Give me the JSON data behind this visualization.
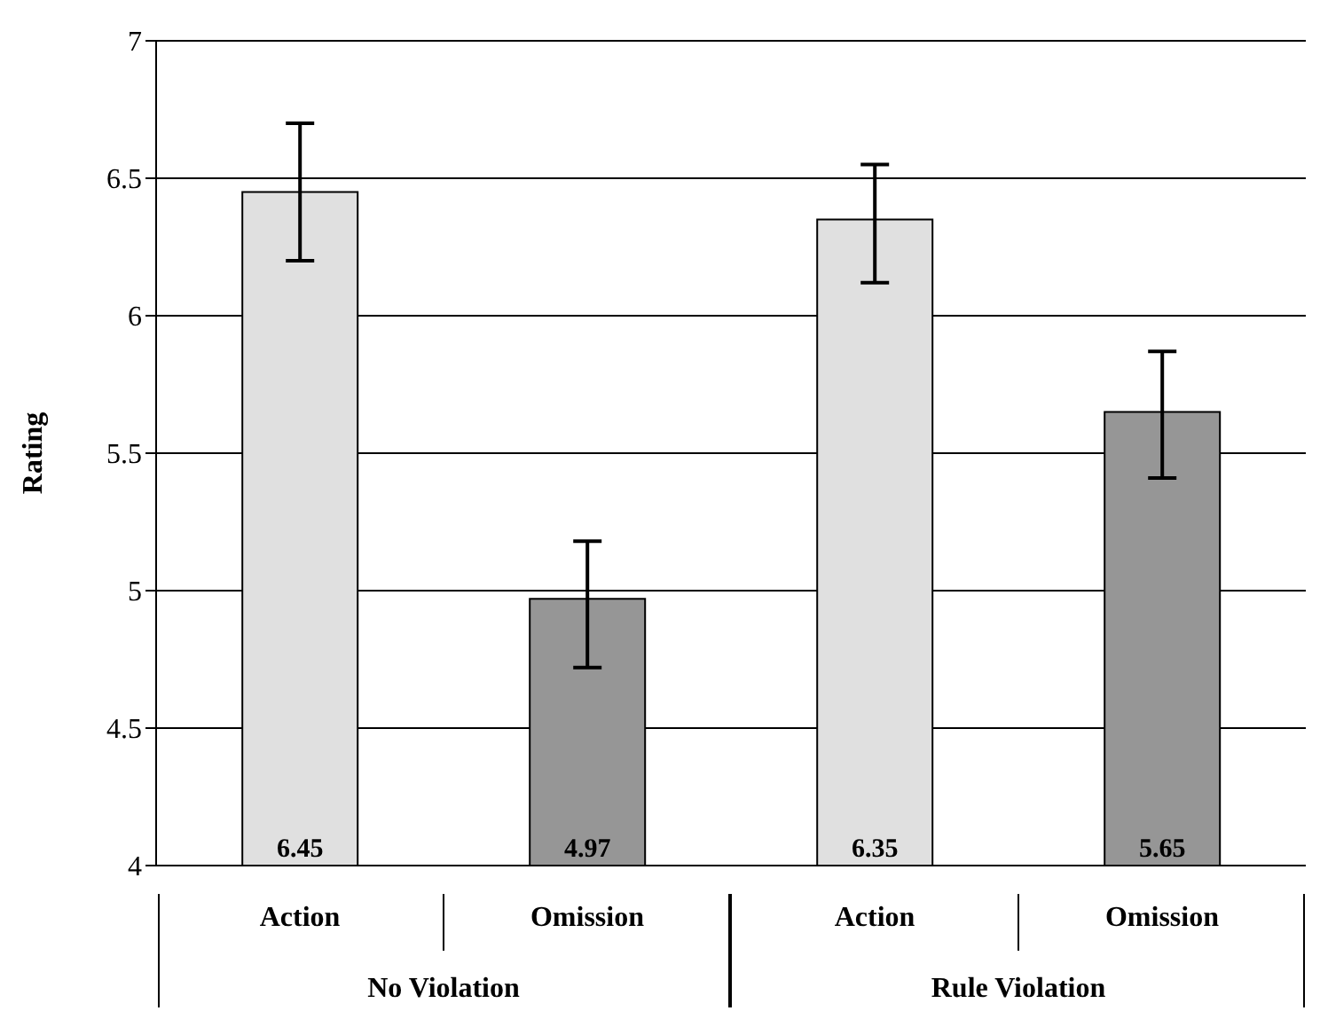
{
  "chart_data": {
    "type": "bar",
    "ylabel": "Rating",
    "categories": [
      "Action",
      "Omission",
      "Action",
      "Omission"
    ],
    "values": [
      6.45,
      4.97,
      6.35,
      5.65
    ],
    "colors": [
      "#e0e0e0",
      "#969696",
      "#e0e0e0",
      "#969696"
    ],
    "errors": [
      [
        6.2,
        6.7
      ],
      [
        4.72,
        5.18
      ],
      [
        6.12,
        6.55
      ],
      [
        5.41,
        5.87
      ]
    ],
    "ylim": [
      4,
      7
    ],
    "yticks": [
      4,
      4.5,
      5,
      5.5,
      6,
      6.5,
      7
    ],
    "grid": "y",
    "data_labels": true,
    "annotations": [
      "No Violation",
      "Rule Violation"
    ]
  }
}
